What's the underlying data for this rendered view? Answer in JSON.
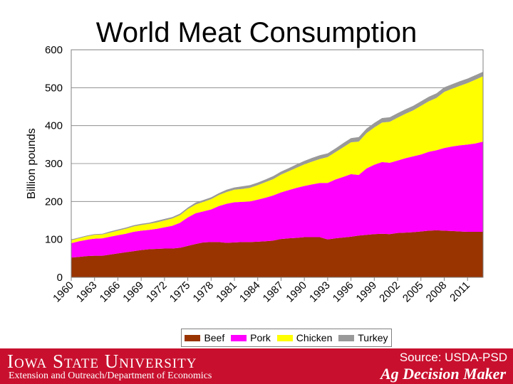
{
  "title": "World Meat Consumption",
  "footer": {
    "institution": "Iowa State University",
    "department": "Extension and Outreach/Department of Economics",
    "source": "Source: USDA-PSD",
    "brand": "Ag Decision Maker"
  },
  "colors": {
    "beef": "#993300",
    "pork": "#ff00ff",
    "chicken": "#ffff00",
    "turkey": "#999999"
  },
  "chart_data": {
    "type": "area",
    "stacked": true,
    "title": "World Meat Consumption",
    "xlabel": "",
    "ylabel": "Billion pounds",
    "ylim": [
      0,
      600
    ],
    "yticks": [
      0,
      100,
      200,
      300,
      400,
      500,
      600
    ],
    "xticks": [
      1960,
      1963,
      1966,
      1969,
      1972,
      1975,
      1978,
      1981,
      1984,
      1987,
      1990,
      1993,
      1996,
      1999,
      2002,
      2005,
      2008,
      2011
    ],
    "grid": true,
    "legend_position": "bottom",
    "x": [
      1960,
      1961,
      1962,
      1963,
      1964,
      1965,
      1966,
      1967,
      1968,
      1969,
      1970,
      1971,
      1972,
      1973,
      1974,
      1975,
      1976,
      1977,
      1978,
      1979,
      1980,
      1981,
      1982,
      1983,
      1984,
      1985,
      1986,
      1987,
      1988,
      1989,
      1990,
      1991,
      1992,
      1993,
      1994,
      1995,
      1996,
      1997,
      1998,
      1999,
      2000,
      2001,
      2002,
      2003,
      2004,
      2005,
      2006,
      2007,
      2008,
      2009,
      2010,
      2011,
      2012,
      2013
    ],
    "series": [
      {
        "name": "Beef",
        "values": [
          52,
          54,
          56,
          57,
          57,
          60,
          63,
          66,
          69,
          72,
          74,
          75,
          76,
          76,
          78,
          83,
          88,
          92,
          93,
          93,
          91,
          92,
          93,
          93,
          94,
          95,
          97,
          101,
          103,
          104,
          106,
          106,
          106,
          100,
          103,
          105,
          107,
          110,
          112,
          114,
          115,
          114,
          117,
          118,
          119,
          121,
          123,
          124,
          123,
          122,
          121,
          120,
          120,
          120
        ]
      },
      {
        "name": "Pork",
        "values": [
          38,
          41,
          43,
          45,
          46,
          47,
          48,
          49,
          51,
          51,
          51,
          53,
          56,
          60,
          66,
          75,
          81,
          82,
          86,
          95,
          103,
          106,
          106,
          107,
          111,
          115,
          119,
          123,
          127,
          132,
          135,
          139,
          143,
          149,
          155,
          160,
          165,
          160,
          175,
          183,
          189,
          188,
          191,
          196,
          200,
          203,
          208,
          211,
          218,
          223,
          227,
          230,
          233,
          238
        ]
      },
      {
        "name": "Chicken",
        "values": [
          8,
          8,
          9,
          10,
          10,
          11,
          12,
          13,
          14,
          15,
          16,
          17,
          18,
          19,
          20,
          22,
          23,
          25,
          27,
          29,
          31,
          33,
          34,
          36,
          38,
          41,
          43,
          47,
          50,
          53,
          57,
          60,
          63,
          68,
          72,
          78,
          84,
          88,
          93,
          98,
          104,
          108,
          113,
          117,
          121,
          128,
          133,
          138,
          148,
          152,
          157,
          162,
          168,
          172
        ]
      },
      {
        "name": "Turkey",
        "values": [
          2,
          2,
          2,
          2,
          2,
          3,
          3,
          3,
          3,
          3,
          3,
          4,
          4,
          4,
          4,
          4,
          5,
          5,
          5,
          5,
          6,
          6,
          7,
          7,
          7,
          7,
          8,
          8,
          8,
          9,
          9,
          10,
          10,
          10,
          10,
          11,
          11,
          12,
          12,
          12,
          12,
          12,
          12,
          12,
          12,
          12,
          12,
          12,
          12,
          12,
          12,
          12,
          12,
          12
        ]
      }
    ]
  }
}
